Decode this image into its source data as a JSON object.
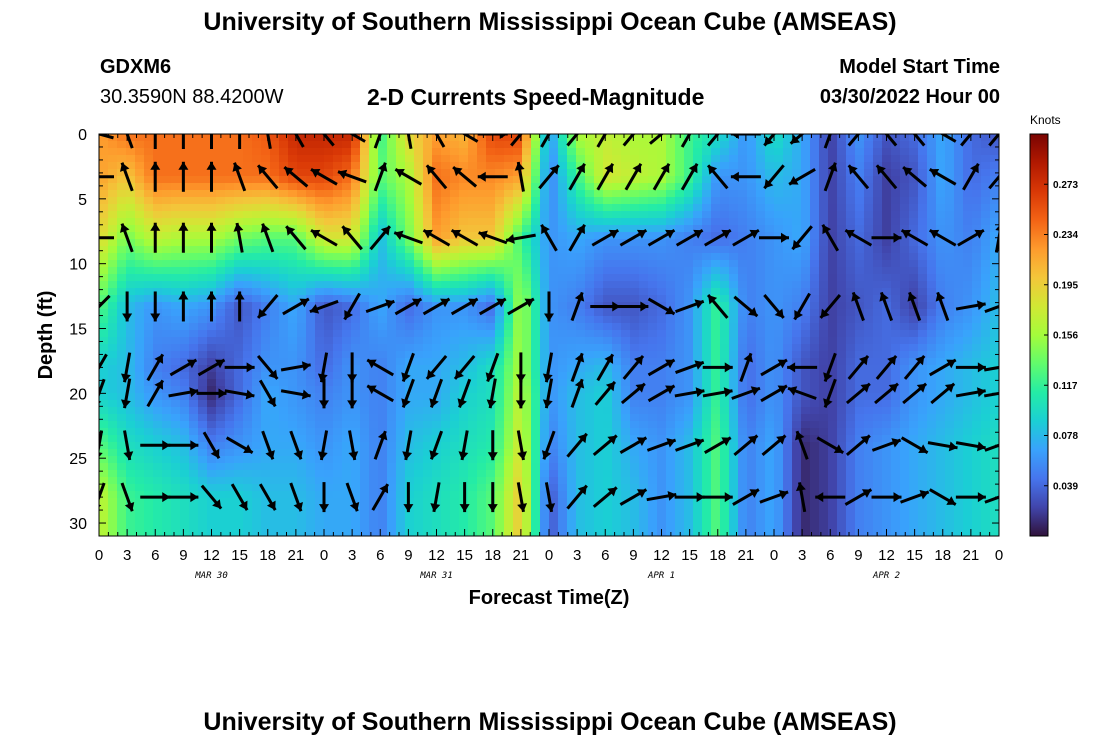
{
  "header": {
    "title": "University of Southern Mississippi Ocean Cube (AMSEAS)",
    "station_id": "GDXM6",
    "station_coords": "30.3590N  88.4200W",
    "model_start_label": "Model Start Time",
    "model_start_time": "03/30/2022 Hour 00"
  },
  "footer": {
    "title": "University of Southern Mississippi Ocean Cube (AMSEAS)"
  },
  "chart_data": {
    "type": "heatmap",
    "title": "2-D Currents Speed-Magnitude",
    "xlabel": "Forecast Time(Z)",
    "ylabel": "Depth (ft)",
    "x_range_hours": [
      0,
      96
    ],
    "y_range_ft": [
      0,
      31
    ],
    "y_inverted": true,
    "x_ticks": [
      {
        "hour": 0,
        "label": "0"
      },
      {
        "hour": 3,
        "label": "3"
      },
      {
        "hour": 6,
        "label": "6"
      },
      {
        "hour": 9,
        "label": "9"
      },
      {
        "hour": 12,
        "label": "12"
      },
      {
        "hour": 15,
        "label": "15"
      },
      {
        "hour": 18,
        "label": "18"
      },
      {
        "hour": 21,
        "label": "21"
      },
      {
        "hour": 24,
        "label": "0"
      },
      {
        "hour": 27,
        "label": "3"
      },
      {
        "hour": 30,
        "label": "6"
      },
      {
        "hour": 33,
        "label": "9"
      },
      {
        "hour": 36,
        "label": "12"
      },
      {
        "hour": 39,
        "label": "15"
      },
      {
        "hour": 42,
        "label": "18"
      },
      {
        "hour": 45,
        "label": "21"
      },
      {
        "hour": 48,
        "label": "0"
      },
      {
        "hour": 51,
        "label": "3"
      },
      {
        "hour": 54,
        "label": "6"
      },
      {
        "hour": 57,
        "label": "9"
      },
      {
        "hour": 60,
        "label": "12"
      },
      {
        "hour": 63,
        "label": "15"
      },
      {
        "hour": 66,
        "label": "18"
      },
      {
        "hour": 69,
        "label": "21"
      },
      {
        "hour": 72,
        "label": "0"
      },
      {
        "hour": 75,
        "label": "3"
      },
      {
        "hour": 78,
        "label": "6"
      },
      {
        "hour": 81,
        "label": "9"
      },
      {
        "hour": 84,
        "label": "12"
      },
      {
        "hour": 87,
        "label": "15"
      },
      {
        "hour": 90,
        "label": "18"
      },
      {
        "hour": 93,
        "label": "21"
      },
      {
        "hour": 96,
        "label": "0"
      }
    ],
    "date_labels": [
      {
        "hour": 12,
        "label": "MAR 30"
      },
      {
        "hour": 36,
        "label": "MAR 31"
      },
      {
        "hour": 60,
        "label": "APR 1"
      },
      {
        "hour": 84,
        "label": "APR 2"
      }
    ],
    "y_ticks": [
      0,
      5,
      10,
      15,
      20,
      25,
      30
    ],
    "depth_rows_ft": [
      0,
      3.3,
      8,
      13.3,
      18,
      20,
      24,
      28
    ],
    "colorbar": {
      "title": "Knots",
      "range": [
        0,
        0.312
      ],
      "tick_values": [
        0.273,
        0.234,
        0.195,
        0.156,
        0.117,
        0.078,
        0.039
      ],
      "tick_labels": [
        "0.273",
        "0.234",
        "0.195",
        "0.156",
        "0.117",
        "0.078",
        "0.039"
      ],
      "colors": [
        "#30123b",
        "#4145ab",
        "#4675ed",
        "#39a2fc",
        "#1bcfd4",
        "#24eca6",
        "#61fc6c",
        "#a4fc3b",
        "#d1e834",
        "#f3c63a",
        "#fe9b2d",
        "#f36315",
        "#d93806",
        "#b11901",
        "#7a0402"
      ]
    },
    "speed_knots": [
      [
        0.22,
        0.24,
        0.24,
        0.24,
        0.24,
        0.24,
        0.25,
        0.28,
        0.28,
        0.28,
        0.12,
        0.19,
        0.22,
        0.21,
        0.26,
        0.26,
        0.06,
        0.16,
        0.17,
        0.16,
        0.16,
        0.12,
        0.1,
        0.06,
        0.1,
        0.07,
        0.02,
        0.06,
        0.03,
        0.04,
        0.07,
        0.04,
        0.03
      ],
      [
        0.22,
        0.2,
        0.24,
        0.24,
        0.24,
        0.24,
        0.24,
        0.26,
        0.26,
        0.24,
        0.13,
        0.16,
        0.24,
        0.23,
        0.23,
        0.22,
        0.05,
        0.12,
        0.18,
        0.17,
        0.16,
        0.12,
        0.06,
        0.06,
        0.08,
        0.07,
        0.02,
        0.05,
        0.02,
        0.03,
        0.07,
        0.04,
        0.05
      ],
      [
        0.19,
        0.14,
        0.17,
        0.16,
        0.16,
        0.14,
        0.13,
        0.13,
        0.18,
        0.18,
        0.08,
        0.14,
        0.22,
        0.2,
        0.2,
        0.12,
        0.06,
        0.07,
        0.06,
        0.06,
        0.06,
        0.05,
        0.04,
        0.05,
        0.06,
        0.07,
        0.02,
        0.04,
        0.02,
        0.04,
        0.06,
        0.05,
        0.07
      ],
      [
        0.13,
        0.08,
        0.06,
        0.07,
        0.06,
        0.03,
        0.05,
        0.07,
        0.03,
        0.04,
        0.07,
        0.04,
        0.06,
        0.06,
        0.04,
        0.16,
        0.06,
        0.05,
        0.03,
        0.03,
        0.04,
        0.06,
        0.12,
        0.05,
        0.06,
        0.05,
        0.02,
        0.03,
        0.04,
        0.02,
        0.05,
        0.06,
        0.08
      ],
      [
        0.09,
        0.08,
        0.05,
        0.04,
        0.02,
        0.04,
        0.06,
        0.06,
        0.04,
        0.06,
        0.05,
        0.07,
        0.07,
        0.08,
        0.1,
        0.16,
        0.06,
        0.07,
        0.08,
        0.05,
        0.05,
        0.06,
        0.12,
        0.04,
        0.06,
        0.03,
        0.02,
        0.04,
        0.04,
        0.06,
        0.07,
        0.08,
        0.09
      ],
      [
        0.09,
        0.08,
        0.06,
        0.05,
        0.01,
        0.04,
        0.07,
        0.06,
        0.05,
        0.06,
        0.05,
        0.07,
        0.07,
        0.09,
        0.1,
        0.17,
        0.06,
        0.08,
        0.09,
        0.05,
        0.05,
        0.06,
        0.12,
        0.04,
        0.06,
        0.03,
        0.02,
        0.04,
        0.04,
        0.06,
        0.07,
        0.08,
        0.09
      ],
      [
        0.13,
        0.1,
        0.09,
        0.08,
        0.05,
        0.06,
        0.07,
        0.07,
        0.06,
        0.07,
        0.05,
        0.08,
        0.09,
        0.1,
        0.11,
        0.18,
        0.05,
        0.08,
        0.09,
        0.07,
        0.06,
        0.08,
        0.13,
        0.05,
        0.07,
        0.01,
        0.02,
        0.05,
        0.06,
        0.07,
        0.08,
        0.09,
        0.1
      ],
      [
        0.17,
        0.12,
        0.11,
        0.1,
        0.09,
        0.09,
        0.08,
        0.08,
        0.07,
        0.07,
        0.05,
        0.09,
        0.1,
        0.11,
        0.13,
        0.2,
        0.03,
        0.08,
        0.09,
        0.08,
        0.06,
        0.08,
        0.13,
        0.05,
        0.07,
        0.01,
        0.02,
        0.05,
        0.06,
        0.07,
        0.08,
        0.09,
        0.1
      ]
    ],
    "direction_deg": [
      [
        285,
        340,
        0,
        0,
        0,
        0,
        350,
        330,
        320,
        300,
        20,
        350,
        330,
        300,
        90,
        40,
        30,
        40,
        30,
        40,
        50,
        30,
        40,
        270,
        220,
        230,
        20,
        40,
        320,
        320,
        300,
        40,
        40
      ],
      [
        270,
        340,
        0,
        0,
        0,
        340,
        320,
        310,
        300,
        290,
        20,
        300,
        320,
        310,
        270,
        350,
        40,
        30,
        30,
        30,
        30,
        30,
        320,
        270,
        220,
        240,
        20,
        320,
        320,
        310,
        300,
        30,
        40
      ],
      [
        270,
        340,
        0,
        0,
        0,
        350,
        340,
        320,
        300,
        320,
        40,
        290,
        300,
        300,
        290,
        260,
        330,
        30,
        60,
        60,
        60,
        60,
        60,
        60,
        90,
        220,
        330,
        300,
        90,
        300,
        300,
        60,
        10
      ],
      [
        225,
        180,
        180,
        0,
        0,
        0,
        220,
        60,
        250,
        210,
        70,
        60,
        60,
        60,
        60,
        60,
        180,
        20,
        90,
        90,
        120,
        70,
        320,
        130,
        140,
        210,
        220,
        340,
        340,
        340,
        340,
        80,
        70
      ],
      [
        210,
        190,
        30,
        60,
        60,
        90,
        140,
        80,
        190,
        180,
        300,
        200,
        220,
        220,
        200,
        180,
        190,
        20,
        30,
        40,
        60,
        70,
        90,
        20,
        60,
        270,
        200,
        40,
        40,
        40,
        60,
        90,
        80
      ],
      [
        200,
        190,
        30,
        80,
        90,
        100,
        150,
        100,
        180,
        180,
        300,
        200,
        200,
        200,
        190,
        180,
        190,
        20,
        40,
        50,
        60,
        80,
        80,
        70,
        60,
        290,
        200,
        50,
        50,
        50,
        50,
        80,
        80
      ],
      [
        190,
        170,
        90,
        90,
        150,
        120,
        160,
        160,
        190,
        170,
        20,
        190,
        200,
        190,
        180,
        170,
        200,
        40,
        50,
        60,
        70,
        70,
        60,
        50,
        50,
        340,
        120,
        50,
        70,
        120,
        100,
        100,
        70
      ],
      [
        200,
        160,
        90,
        90,
        140,
        150,
        150,
        160,
        180,
        160,
        30,
        180,
        190,
        180,
        180,
        170,
        170,
        40,
        50,
        60,
        80,
        90,
        90,
        60,
        70,
        350,
        270,
        60,
        90,
        70,
        120,
        90,
        70
      ]
    ]
  }
}
